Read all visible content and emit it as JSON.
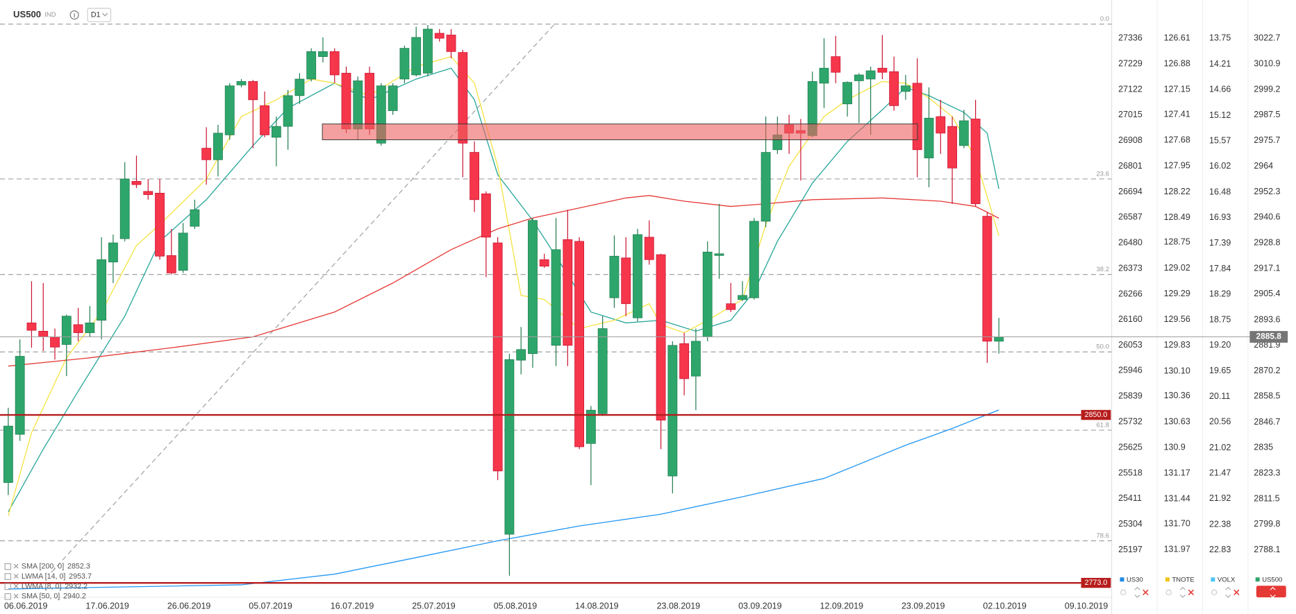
{
  "chart_data": {
    "type": "candlestick",
    "symbol": "US500",
    "symbol_type": "IND",
    "timeframe": "D1",
    "categories": [
      "06.06.2019",
      null,
      null,
      null,
      null,
      null,
      null,
      "17.06.2019",
      null,
      null,
      null,
      null,
      null,
      null,
      "26.06.2019",
      null,
      null,
      null,
      null,
      null,
      null,
      "05.07.2019",
      null,
      null,
      null,
      null,
      null,
      null,
      "16.07.2019",
      null,
      null,
      null,
      null,
      null,
      null,
      "25.07.2019",
      null,
      null,
      null,
      null,
      null,
      null,
      "05.08.2019",
      null,
      null,
      null,
      null,
      null,
      null,
      "14.08.2019",
      null,
      null,
      null,
      null,
      null,
      null,
      "23.08.2019",
      null,
      null,
      null,
      null,
      null,
      null,
      "03.09.2019",
      null,
      null,
      null,
      null,
      null,
      null,
      "12.09.2019",
      null,
      null,
      null,
      null,
      null,
      null,
      "23.09.2019",
      null,
      null,
      null,
      null,
      null,
      null,
      "02.10.2019",
      null,
      null,
      null,
      null,
      null,
      null,
      "09.10.2019"
    ],
    "open": [
      2819.0,
      2841.1,
      2892.2,
      2888.4,
      2885.8,
      2882.3,
      2891.4,
      2887.7,
      2893.4,
      2920.1,
      2930.8,
      2957.1,
      2952.5,
      2951.7,
      2923.1,
      2916.3,
      2936.5,
      2972.3,
      2967.0,
      2978.4,
      3001.3,
      3002.9,
      2991.8,
      2977.3,
      2982.3,
      2996.4,
      3004.0,
      3014.3,
      3016.6,
      3006.7,
      2981.1,
      3006.7,
      2974.6,
      2989.5,
      3004.0,
      3005.9,
      3006.7,
      3025.0,
      3024.2,
      3016.2,
      2970.4,
      2951.4,
      2928.9,
      2795.3,
      2875.1,
      2878.1,
      2921.2,
      2881.9,
      2930.4,
      2929.6,
      2836.9,
      2850.6,
      2903.7,
      2922.0,
      2894.5,
      2931.5,
      2923.5,
      2822.0,
      2882.7,
      2867.8,
      2885.8,
      2923.1,
      2901.0,
      2902.9,
      2903.7,
      2938.8,
      2971.6,
      2983.0,
      2980.4,
      2978.1,
      3002.1,
      3014.3,
      2992.6,
      3003.2,
      3004.0,
      3009.0,
      3007.4,
      2998.3,
      3002.1,
      2967.8,
      2986.8,
      2982.3,
      2973.5,
      2985.7,
      2941.1,
      2883.8,
      null,
      null,
      null,
      null,
      null,
      null
    ],
    "high": [
      2853.3,
      2884.6,
      2911.3,
      2910.5,
      2889.6,
      2896.0,
      2899.1,
      2899.9,
      2931.5,
      2932.7,
      2965.9,
      2968.9,
      2958.2,
      2958.2,
      2935.3,
      2938.0,
      2948.7,
      2981.9,
      2983.0,
      3002.1,
      3004.0,
      3003.6,
      2998.3,
      2986.8,
      2999.0,
      3006.7,
      3018.1,
      3023.1,
      3018.1,
      3009.7,
      3005.2,
      3009.7,
      3002.1,
      3002.1,
      3019.3,
      3028.0,
      3028.8,
      3026.9,
      3026.9,
      3017.4,
      2975.4,
      2952.5,
      2931.5,
      2878.1,
      2890.3,
      2940.3,
      2923.9,
      2940.3,
      2944.1,
      2931.5,
      2854.1,
      2895.3,
      2932.3,
      2931.5,
      2935.3,
      2939.2,
      2923.9,
      2883.8,
      2887.7,
      2889.6,
      2929.6,
      2946.8,
      2910.5,
      2911.3,
      2940.3,
      2986.8,
      2986.8,
      2987.6,
      2985.7,
      3007.4,
      3022.7,
      3023.8,
      3002.9,
      3006.7,
      3009.7,
      3024.2,
      3014.3,
      3005.9,
      3013.5,
      3000.2,
      2994.5,
      2986.8,
      2989.9,
      2994.5,
      2943.0,
      2894.5,
      null,
      null,
      null,
      null,
      null,
      null
    ],
    "low": [
      2813.2,
      2838.1,
      2880.8,
      2879.3,
      2875.4,
      2867.8,
      2883.8,
      2885.8,
      2884.6,
      2910.5,
      2929.6,
      2954.0,
      2948.7,
      2921.2,
      2914.4,
      2915.1,
      2935.3,
      2955.6,
      2959.4,
      2976.2,
      3000.2,
      2972.3,
      2977.3,
      2964.0,
      2971.6,
      2992.6,
      3002.9,
      3011.6,
      3002.1,
      2979.2,
      2976.2,
      2978.4,
      2973.5,
      2987.6,
      3002.1,
      3005.2,
      3005.2,
      3021.2,
      3013.5,
      2959.0,
      2943.0,
      2913.2,
      2820.1,
      2776.3,
      2868.6,
      2871.6,
      2917.4,
      2872.4,
      2872.4,
      2834.3,
      2817.8,
      2849.5,
      2899.1,
      2895.3,
      2892.9,
      2918.9,
      2834.3,
      2814.0,
      2859.0,
      2852.2,
      2883.8,
      2912.4,
      2897.2,
      2902.2,
      2902.9,
      2936.1,
      2969.7,
      2969.7,
      2957.5,
      2977.3,
      2990.7,
      3002.1,
      2986.8,
      2983.8,
      2978.4,
      3004.0,
      2989.5,
      2994.5,
      2959.0,
      2954.4,
      2969.7,
      2946.8,
      2972.3,
      2945.6,
      2873.9,
      2878.1,
      null,
      null,
      null,
      null,
      null,
      null
    ],
    "close": [
      2844.9,
      2876.9,
      2888.8,
      2885.8,
      2881.1,
      2895.3,
      2887.7,
      2892.2,
      2921.2,
      2928.9,
      2958.2,
      2955.6,
      2951.0,
      2922.8,
      2915.1,
      2933.4,
      2944.1,
      2967.0,
      2979.2,
      3000.9,
      3002.9,
      2994.5,
      2978.4,
      2982.3,
      2996.4,
      3004.0,
      3016.6,
      3016.6,
      3005.9,
      2981.1,
      3003.2,
      2981.1,
      3000.9,
      3000.9,
      3018.1,
      3023.1,
      3026.9,
      3022.7,
      3016.6,
      2974.6,
      2948.7,
      2931.5,
      2824.3,
      2875.4,
      2880.0,
      2939.2,
      2918.2,
      2925.8,
      2881.9,
      2835.4,
      2852.2,
      2889.6,
      2922.8,
      2901.0,
      2932.7,
      2921.2,
      2847.6,
      2881.9,
      2866.6,
      2883.8,
      2924.7,
      2923.9,
      2898.3,
      2904.8,
      2938.8,
      2970.4,
      2978.4,
      2979.2,
      2979.2,
      3002.9,
      3009.0,
      3007.1,
      3002.5,
      3005.9,
      3007.8,
      3007.1,
      2991.8,
      3000.9,
      2971.6,
      2986.1,
      2979.2,
      2963.2,
      2984.9,
      2946.8,
      2883.8,
      2885.8,
      null,
      null,
      null,
      null,
      null,
      null
    ],
    "up_color": "#2ea66b",
    "down_color": "#f5364b",
    "indicators": [
      {
        "name": "SMA [200, 0]",
        "value": 2852.3,
        "color": "#2196f3",
        "x": [
          0,
          20,
          28,
          35,
          42,
          49,
          56,
          63,
          70,
          77,
          81,
          85
        ],
        "values": [
          2770.2,
          2772.1,
          2777.0,
          2784.6,
          2792.3,
          2799.1,
          2804.5,
          2812.5,
          2820.9,
          2836.1,
          2843.8,
          2852.3
        ]
      },
      {
        "name": "LWMA [14, 0]",
        "value": 2953.7,
        "color": "#26a69a",
        "x": [
          0,
          3,
          6,
          10,
          13,
          17,
          21,
          24,
          28,
          31,
          35,
          38,
          40,
          42,
          45,
          48,
          50,
          53,
          56,
          59,
          62,
          64,
          66,
          69,
          72,
          75,
          77,
          79,
          82,
          84,
          85
        ],
        "values": [
          2805.6,
          2834.3,
          2860.9,
          2895.3,
          2929.6,
          2948.7,
          2973.5,
          2990.7,
          3002.1,
          2994.5,
          3004.0,
          3009.0,
          2994.5,
          2960.1,
          2939.2,
          2914.4,
          2897.2,
          2892.2,
          2893.4,
          2888.4,
          2893.4,
          2906.7,
          2929.6,
          2956.3,
          2975.4,
          2989.9,
          3000.2,
          2996.4,
          2988.7,
          2979.2,
          2953.7
        ]
      },
      {
        "name": "LWMA [8, 0]",
        "value": 2932.2,
        "color": "#f5e342",
        "x": [
          0,
          2,
          5,
          8,
          11,
          13,
          17,
          20,
          23,
          26,
          28,
          31,
          35,
          38,
          40,
          42,
          44,
          46,
          49,
          52,
          55,
          56,
          58,
          60,
          63,
          65,
          67,
          70,
          72,
          75,
          77,
          79,
          81,
          83,
          85
        ],
        "values": [
          2803.7,
          2841.9,
          2876.2,
          2897.2,
          2927.7,
          2937.3,
          2958.2,
          2986.8,
          2994.5,
          3004.0,
          3002.1,
          2996.4,
          3009.7,
          3014.3,
          3002.1,
          2964.0,
          2904.8,
          2902.9,
          2889.6,
          2893.4,
          2901.0,
          2891.4,
          2887.7,
          2893.4,
          2902.9,
          2937.3,
          2964.0,
          2986.8,
          2994.5,
          3002.9,
          3002.1,
          2995.3,
          2986.8,
          2967.8,
          2932.2
        ]
      },
      {
        "name": "SMA [50, 0]",
        "value": 2940.2,
        "color": "#e53935",
        "x": [
          0,
          7,
          14,
          21,
          28,
          33,
          38,
          42,
          45,
          49,
          53,
          55,
          58,
          62,
          65,
          69,
          75,
          80,
          83,
          85
        ],
        "values": [
          2872.4,
          2876.2,
          2880.8,
          2885.8,
          2897.2,
          2910.5,
          2925.8,
          2935.3,
          2940.3,
          2944.9,
          2949.5,
          2950.6,
          2948.0,
          2945.6,
          2946.8,
          2948.7,
          2949.5,
          2948.0,
          2945.6,
          2940.2
        ]
      }
    ],
    "levels": [
      {
        "value": 2850,
        "label": "2850.0"
      },
      {
        "value": 2773,
        "label": "2773.0"
      }
    ],
    "level_color": "#b71c1c",
    "fib_levels": [
      {
        "ratio": "0.0",
        "price": 3029.2
      },
      {
        "ratio": "23.6",
        "price": 2958.2
      },
      {
        "ratio": "38.2",
        "price": 2914.4
      },
      {
        "ratio": "50.0",
        "price": 2878.9
      },
      {
        "ratio": "61.8",
        "price": 2843.0
      },
      {
        "ratio": "78.6",
        "price": 2792.3
      }
    ],
    "last_price": 2885.8,
    "axes": [
      {
        "name": "US30",
        "color": "#1e88e5",
        "ylim": [
          24998.8,
          27496.0
        ],
        "yticks": [
          27336,
          27229,
          27122,
          27015,
          26908,
          26801,
          26694,
          26587,
          26480,
          26373,
          26266,
          26160,
          26053,
          25946,
          25839,
          25732,
          25625,
          25518,
          25411,
          25304,
          25197
        ]
      },
      {
        "name": "TNOTE",
        "color": "#f0c419",
        "ylim": [
          132.47,
          126.21
        ],
        "yticks": [
          126.61,
          126.88,
          127.15,
          127.41,
          127.68,
          127.95,
          128.22,
          128.49,
          128.75,
          129.02,
          129.29,
          129.56,
          129.83,
          {
            "value": 130.1,
            "label": "130.10"
          },
          130.36,
          130.63,
          130.9,
          131.17,
          131.44,
          {
            "value": 131.7,
            "label": "131.70"
          },
          131.97
        ]
      },
      {
        "name": "VOLX",
        "color": "#4fc3f7",
        "ylim": [
          23.67,
          13.07
        ],
        "yticks": [
          13.75,
          14.21,
          14.66,
          15.12,
          15.57,
          16.02,
          16.48,
          16.93,
          17.39,
          17.84,
          18.29,
          18.75,
          {
            "value": 19.2,
            "label": "19.20"
          },
          19.65,
          20.11,
          20.56,
          21.02,
          21.47,
          21.92,
          22.38,
          22.83
        ]
      },
      {
        "name": "US500",
        "color": "#2ea66b",
        "ylim": [
          2766.36,
          3040.25
        ],
        "yticks": [
          3022.7,
          3010.9,
          2999.2,
          2987.5,
          2975.7,
          2964.0,
          2952.3,
          2940.6,
          2928.8,
          2917.1,
          2905.4,
          2893.6,
          2881.9,
          2870.2,
          2858.5,
          2846.7,
          2835.0,
          2823.3,
          2811.5,
          2799.8,
          2788.1
        ]
      }
    ]
  }
}
